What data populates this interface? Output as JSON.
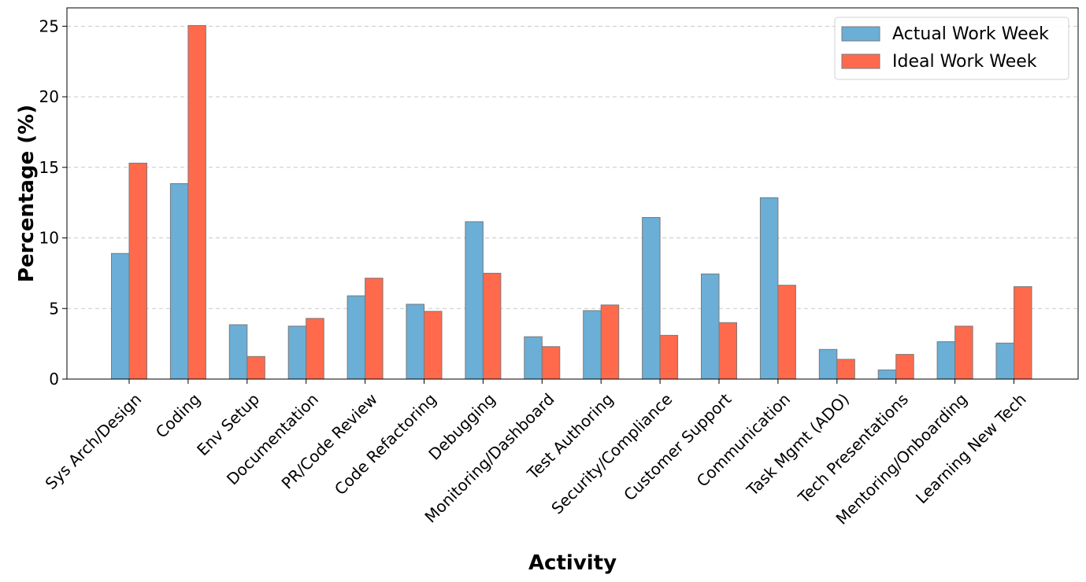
{
  "chart_data": {
    "type": "bar",
    "xlabel": "Activity",
    "ylabel": "Percentage (%)",
    "ylim": [
      0,
      26.3
    ],
    "yticks": [
      0,
      5,
      10,
      15,
      20,
      25
    ],
    "grid": "y-dashed",
    "legend_position": "top-right",
    "categories": [
      "Sys Arch/Design",
      "Coding",
      "Env Setup",
      "Documentation",
      "PR/Code Review",
      "Code Refactoring",
      "Debugging",
      "Monitoring/Dashboard",
      "Test Authoring",
      "Security/Compliance",
      "Customer Support",
      "Communication",
      "Task Mgmt (ADO)",
      "Tech Presentations",
      "Mentoring/Onboarding",
      "Learning New Tech"
    ],
    "series": [
      {
        "name": "Actual Work Week",
        "color": "#6baed6",
        "values": [
          8.9,
          13.85,
          3.85,
          3.75,
          5.9,
          5.3,
          11.15,
          3.0,
          4.85,
          11.45,
          7.45,
          12.85,
          2.1,
          0.65,
          2.65,
          2.55
        ]
      },
      {
        "name": "Ideal Work Week",
        "color": "#ff6a4d",
        "values": [
          15.3,
          25.05,
          1.6,
          4.3,
          7.15,
          4.8,
          7.5,
          2.3,
          5.25,
          3.1,
          4.0,
          6.65,
          1.4,
          1.75,
          3.75,
          6.55
        ]
      }
    ]
  }
}
